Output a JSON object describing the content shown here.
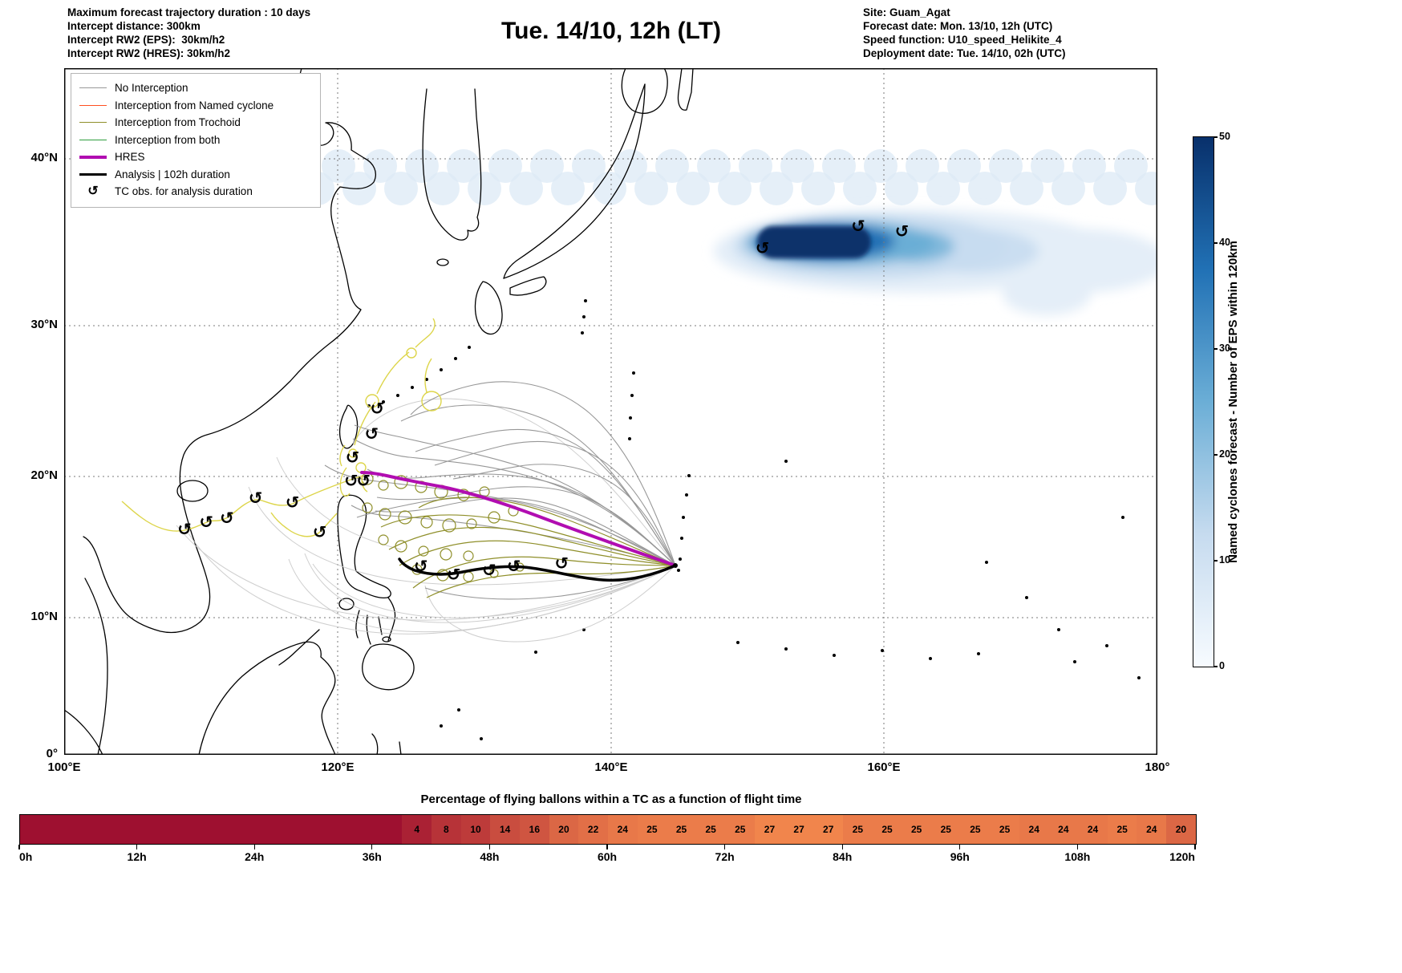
{
  "header": {
    "left_lines": [
      "Maximum forecast trajectory duration : 10 days",
      "Intercept distance: 300km",
      "Intercept RW2 (EPS):  30km/h2",
      "Intercept RW2 (HRES): 30km/h2"
    ],
    "title": "Tue. 14/10, 12h (LT)",
    "right_lines": [
      "Site: Guam_Agat",
      "Forecast date: Mon. 13/10, 12h (UTC)",
      "Speed function: U10_speed_Helikite_4",
      "Deployment date: Tue. 14/10, 02h (UTC)"
    ]
  },
  "legend": {
    "items": [
      {
        "label": "No Interception",
        "color": "#999999",
        "width": 1.5,
        "type": "line"
      },
      {
        "label": "Interception from Named cyclone",
        "color": "#ff4f22",
        "width": 1.5,
        "type": "line"
      },
      {
        "label": "Interception from Trochoid",
        "color": "#8f8f2a",
        "width": 1.5,
        "type": "line"
      },
      {
        "label": "Interception from both",
        "color": "#2e9e3e",
        "width": 1.5,
        "type": "line"
      },
      {
        "label": "HRES",
        "color": "#b10db1",
        "width": 4,
        "type": "line"
      },
      {
        "label": "Analysis | 102h duration",
        "color": "#000000",
        "width": 3.5,
        "type": "line"
      },
      {
        "label": "TC obs. for analysis duration",
        "type": "symbol"
      }
    ]
  },
  "tc_symbol": "↺",
  "map": {
    "x_ticks": [
      "100°E",
      "120°E",
      "140°E",
      "160°E",
      "180°"
    ],
    "y_ticks": [
      "40°N",
      "30°N",
      "20°N",
      "10°N",
      "0°"
    ]
  },
  "colorbar": {
    "title": "Named cyclones forecast - Number of EPS within 120km",
    "ticks": [
      50,
      40,
      30,
      20,
      10,
      0
    ],
    "max_color": "#08306b",
    "min_color": "#f7fbff"
  },
  "bottom_strip": {
    "title": "Percentage of flying ballons within a TC as a function of flight time",
    "x_ticks": [
      "0h",
      "12h",
      "24h",
      "36h",
      "48h",
      "60h",
      "72h",
      "84h",
      "96h",
      "108h",
      "120h"
    ],
    "values": [
      4,
      8,
      10,
      14,
      16,
      20,
      22,
      24,
      25,
      25,
      25,
      25,
      27,
      27,
      27,
      25,
      25,
      25,
      25,
      25,
      25,
      24,
      24,
      24,
      25,
      24,
      20
    ],
    "start_hour": 39,
    "step_hour": 3,
    "end_hour": 120,
    "low_color": "#9e1030",
    "high_color": "#f1854c"
  },
  "chart_data": [
    {
      "type": "heatmap",
      "title": "Percentage of flying ballons within a TC as a function of flight time",
      "x_label": "flight time",
      "x_ticks": [
        "0h",
        "12h",
        "24h",
        "36h",
        "48h",
        "60h",
        "72h",
        "84h",
        "96h",
        "108h",
        "120h"
      ],
      "cells_start_hour": 39,
      "cells_step_hour": 3,
      "values": [
        4,
        8,
        10,
        14,
        16,
        20,
        22,
        24,
        25,
        25,
        25,
        25,
        27,
        27,
        27,
        25,
        25,
        25,
        25,
        25,
        25,
        24,
        24,
        24,
        25,
        24,
        20
      ],
      "note": "cells from 0h to 39h are unlabeled dark crimson (~0%)"
    },
    {
      "type": "map",
      "title": "Tue. 14/10, 12h (LT)",
      "lon_range_deg_e": [
        100,
        180
      ],
      "lat_range_deg_n": [
        0,
        42
      ],
      "deployment_site": {
        "name": "Guam_Agat",
        "lon": 144.7,
        "lat": 13.4
      },
      "legend_entries": [
        "No Interception",
        "Interception from Named cyclone",
        "Interception from Trochoid",
        "Interception from both",
        "HRES",
        "Analysis | 102h duration",
        "TC obs. for analysis duration"
      ],
      "analysis_duration_h": 102,
      "colorbar": {
        "label": "Named cyclones forecast - Number of EPS within 120km",
        "range": [
          0,
          50
        ]
      },
      "tc_observations_lonlat": [
        [
          126.1,
          13.7
        ],
        [
          128.5,
          13.1
        ],
        [
          131.1,
          13.4
        ],
        [
          132.9,
          13.7
        ],
        [
          136.4,
          13.9
        ],
        [
          108.8,
          16.3
        ],
        [
          110.4,
          16.8
        ],
        [
          111.9,
          17.1
        ],
        [
          114.0,
          18.5
        ],
        [
          116.7,
          18.2
        ],
        [
          118.7,
          16.1
        ],
        [
          121.0,
          19.7
        ],
        [
          121.9,
          19.7
        ],
        [
          121.1,
          21.3
        ],
        [
          122.5,
          22.9
        ],
        [
          122.9,
          24.6
        ],
        [
          151.1,
          34.8
        ],
        [
          158.1,
          36.1
        ],
        [
          161.3,
          35.8
        ]
      ]
    }
  ]
}
